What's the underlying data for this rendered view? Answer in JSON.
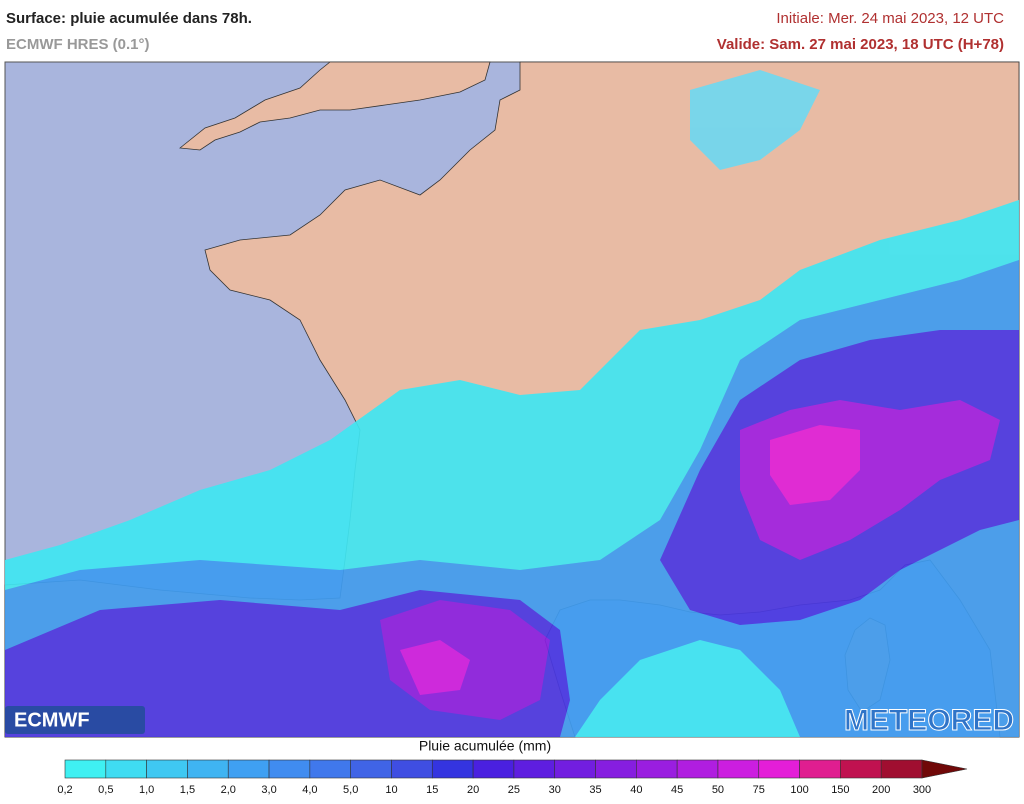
{
  "header": {
    "title": "Surface: pluie acumulée dans 78h.",
    "subtitle": "ECMWF HRES (0.1°)",
    "initiale": "Initiale: Mer. 24 mai 2023, 12 UTC",
    "valide": "Valide: Sam. 27 mai 2023, 18 UTC (H+78)"
  },
  "logos": {
    "left": "ECMWF",
    "right": "METEORED"
  },
  "legend": {
    "title": "Pluie acumulée (mm)",
    "labels": [
      "0,2",
      "0,5",
      "1,0",
      "1,5",
      "2,0",
      "3,0",
      "4,0",
      "5,0",
      "10",
      "15",
      "20",
      "25",
      "30",
      "35",
      "40",
      "45",
      "50",
      "75",
      "100",
      "150",
      "200",
      "300"
    ],
    "colors": [
      "#3ff0f2",
      "#3fdcf2",
      "#3fc8f2",
      "#3fb4f2",
      "#3fa0f2",
      "#408cf0",
      "#4078ec",
      "#4064e6",
      "#3f4ee2",
      "#3434e0",
      "#4a20e0",
      "#5e1ee0",
      "#721ee0",
      "#861ee0",
      "#9a1ee0",
      "#b01ee0",
      "#cc1ee0",
      "#e41ed8",
      "#e01e90",
      "#c01250",
      "#a00e30"
    ],
    "arrow_color": "#700808"
  }
}
